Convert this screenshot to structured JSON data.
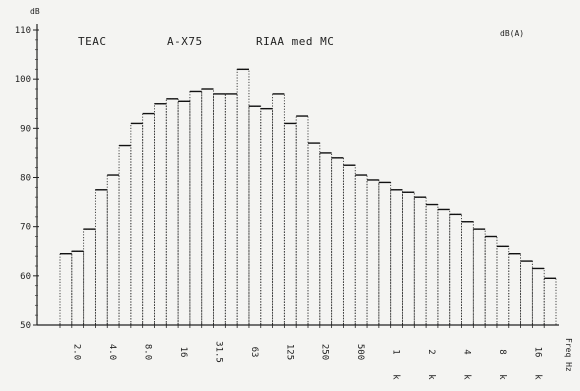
{
  "chart_data": {
    "type": "bar",
    "title_parts": [
      "TEAC",
      "A-X75",
      "RIAA med MC"
    ],
    "units_top_right": "dB(A)",
    "ylabel": "dB",
    "xlabel": "Freq Hz",
    "ylim": [
      50,
      110
    ],
    "yticks": [
      50,
      60,
      70,
      80,
      90,
      100,
      110
    ],
    "xtick_labels": [
      "2.0",
      "4.0",
      "8.0",
      "16",
      "31.5",
      "63",
      "125",
      "250",
      "500",
      "1",
      "2",
      "4",
      "8",
      "16"
    ],
    "xtick_suffix": [
      "",
      "",
      "",
      "",
      "",
      "",
      "",
      "",
      "",
      "k",
      "k",
      "k",
      "k",
      "k"
    ],
    "values": [
      64.5,
      65,
      69.5,
      77.5,
      80.5,
      86.5,
      91,
      93,
      95,
      96,
      95.5,
      97.5,
      98,
      97,
      97,
      102,
      94.5,
      94,
      97,
      91,
      92.5,
      87,
      85,
      84,
      82.5,
      80.5,
      79.5,
      79,
      77.5,
      77,
      76,
      74.5,
      73.5,
      72.5,
      71,
      69.5,
      68,
      66,
      64.5,
      63,
      61.5,
      59.5
    ]
  }
}
